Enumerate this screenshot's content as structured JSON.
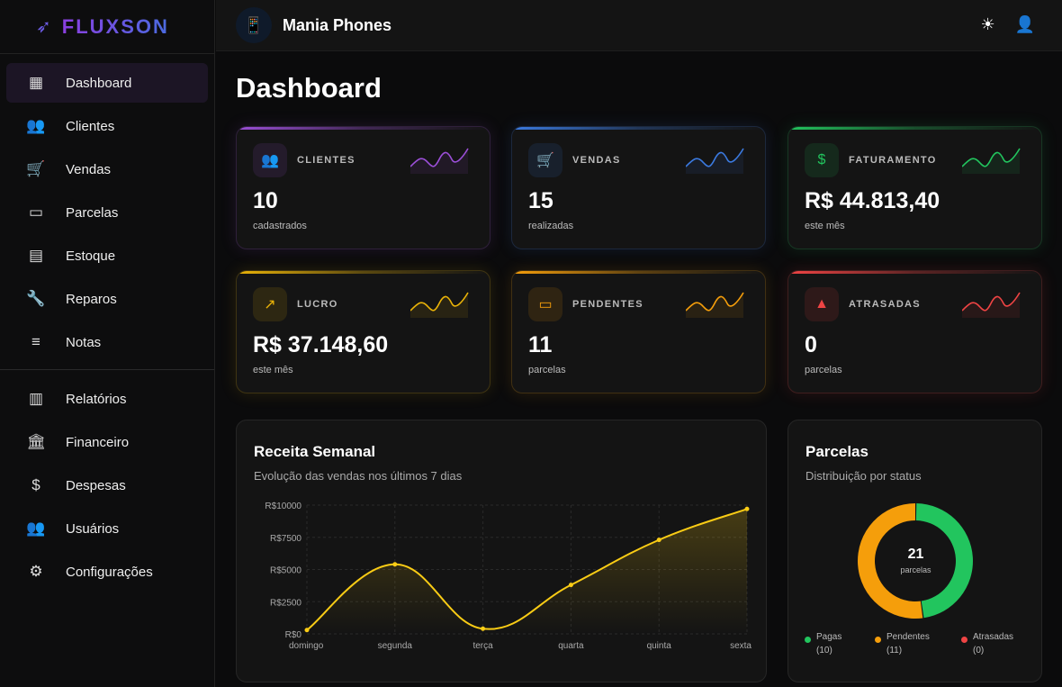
{
  "brand": {
    "name": "FLUXSON"
  },
  "header": {
    "store": "Mania Phones",
    "icons": [
      "sun-icon",
      "user-icon"
    ]
  },
  "sidebar": {
    "items": [
      {
        "label": "Dashboard",
        "icon": "dashboard-icon",
        "active": true
      },
      {
        "label": "Clientes",
        "icon": "people-icon"
      },
      {
        "label": "Vendas",
        "icon": "cart-icon"
      },
      {
        "label": "Parcelas",
        "icon": "card-icon"
      },
      {
        "label": "Estoque",
        "icon": "archive-icon"
      },
      {
        "label": "Reparos",
        "icon": "wrench-icon"
      },
      {
        "label": "Notas",
        "icon": "notes-icon"
      },
      {
        "label": "Relatórios",
        "icon": "chart-icon"
      },
      {
        "label": "Financeiro",
        "icon": "bank-icon"
      },
      {
        "label": "Despesas",
        "icon": "money-off-icon"
      },
      {
        "label": "Usuários",
        "icon": "people-icon"
      },
      {
        "label": "Configurações",
        "icon": "gear-icon"
      }
    ]
  },
  "page": {
    "title": "Dashboard"
  },
  "cards": [
    {
      "label": "CLIENTES",
      "value": "10",
      "sub": "cadastrados",
      "color": "#9b4fd8",
      "icon": "people-icon"
    },
    {
      "label": "VENDAS",
      "value": "15",
      "sub": "realizadas",
      "color": "#3b7ae0",
      "icon": "cart-icon"
    },
    {
      "label": "FATURAMENTO",
      "value": "R$ 44.813,40",
      "sub": "este mês",
      "color": "#22c55e",
      "icon": "dollar-icon"
    },
    {
      "label": "LUCRO",
      "value": "R$ 37.148,60",
      "sub": "este mês",
      "color": "#eab308",
      "icon": "trending-up-icon"
    },
    {
      "label": "PENDENTES",
      "value": "11",
      "sub": "parcelas",
      "color": "#f59e0b",
      "icon": "card-icon"
    },
    {
      "label": "ATRASADAS",
      "value": "0",
      "sub": "parcelas",
      "color": "#ef4444",
      "icon": "warning-icon"
    }
  ],
  "weekly": {
    "title": "Receita Semanal",
    "subtitle": "Evolução das vendas nos últimos 7 dias"
  },
  "parcelas": {
    "title": "Parcelas",
    "subtitle": "Distribuição por status",
    "total": "21",
    "total_label": "parcelas"
  },
  "chart_data": [
    {
      "type": "area",
      "categories": [
        "domingo",
        "segunda",
        "terça",
        "quarta",
        "quinta",
        "sexta"
      ],
      "values": [
        300,
        5400,
        400,
        3800,
        7300,
        9700
      ],
      "ylim": [
        0,
        10000
      ],
      "yticks": [
        "R$0",
        "R$2500",
        "R$5000",
        "R$7500",
        "R$10000"
      ],
      "grid": true,
      "color": "#facc15"
    },
    {
      "type": "pie",
      "variant": "doughnut",
      "legend": "bottom",
      "slices": [
        {
          "name": "Pagas",
          "value": 10,
          "label": "(10)",
          "color": "#22c55e"
        },
        {
          "name": "Pendentes",
          "value": 11,
          "label": "(11)",
          "color": "#f59e0b"
        },
        {
          "name": "Atrasadas",
          "value": 0,
          "label": "(0)",
          "color": "#ef4444"
        }
      ]
    }
  ]
}
